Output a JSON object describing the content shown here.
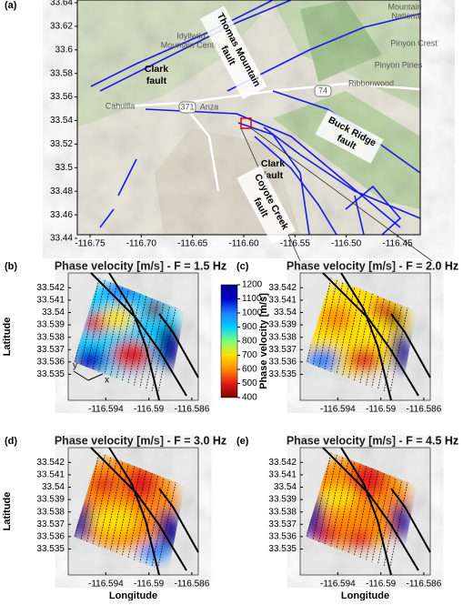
{
  "panel_a": {
    "label": "(a)",
    "xlim": [
      -116.7624,
      -116.4278
    ],
    "ylim": [
      33.4431,
      33.6423
    ],
    "xticks": [
      -116.75,
      {
        "value": -116.7,
        "label": "-116.70"
      },
      -116.65,
      {
        "value": -116.6,
        "label": "-116.60"
      },
      -116.55,
      {
        "value": -116.5,
        "label": "-116.50"
      },
      -116.45
    ],
    "yticks": [
      33.64,
      33.62,
      33.6,
      33.58,
      33.56,
      33.54,
      33.52,
      33.5,
      33.48,
      33.46,
      33.44
    ],
    "places": [
      "Mountain",
      "National",
      "Pinyon Crest",
      "Pinyon Pines",
      "Ribbonwood",
      "Anza",
      "Cahuilla",
      "Idyllwild",
      "Mountain Center"
    ],
    "roads": [
      "371",
      "74"
    ],
    "fault_labels": [
      [
        "Thomas Mountain",
        "fault"
      ],
      [
        "Clark",
        "fault"
      ],
      [
        "Buck Ridge",
        "fault"
      ],
      [
        "Clark",
        "fault"
      ],
      [
        "Coyote Creek",
        "fault"
      ]
    ]
  },
  "panels": [
    {
      "label": "(b)",
      "title": "Phase velocity [m/s] - F = 1.5 Hz"
    },
    {
      "label": "(c)",
      "title": "Phase velocity [m/s] - F = 2.0 Hz"
    },
    {
      "label": "(d)",
      "title": "Phase velocity [m/s] - F = 3.0 Hz"
    },
    {
      "label": "(e)",
      "title": "Phase velocity [m/s] - F = 4.5 Hz"
    }
  ],
  "small_axes": {
    "xlim": [
      -116.5975,
      -116.5854
    ],
    "ylim": [
      33.5329,
      33.5432
    ],
    "xticks": [
      -116.594,
      -116.59,
      -116.586
    ],
    "yticks": [
      33.542,
      33.541,
      33.54,
      33.539,
      33.538,
      33.537,
      33.536,
      33.535
    ],
    "xlabel": "Longitude",
    "ylabel": "Latitude",
    "axis_x": "x",
    "axis_y": "y"
  },
  "colorbar": {
    "label": "Phase velocity [m/s]",
    "lim": [
      400,
      1200
    ],
    "ticks": [
      400,
      500,
      600,
      700,
      800,
      900,
      1000,
      1100,
      1200
    ],
    "colors": [
      "#7f0000",
      "#e31a1c",
      "#ff8c00",
      "#ffe000",
      "#7fff7f",
      "#00d0ff",
      "#1e7fff",
      "#0000c8",
      "#00008f"
    ]
  }
}
